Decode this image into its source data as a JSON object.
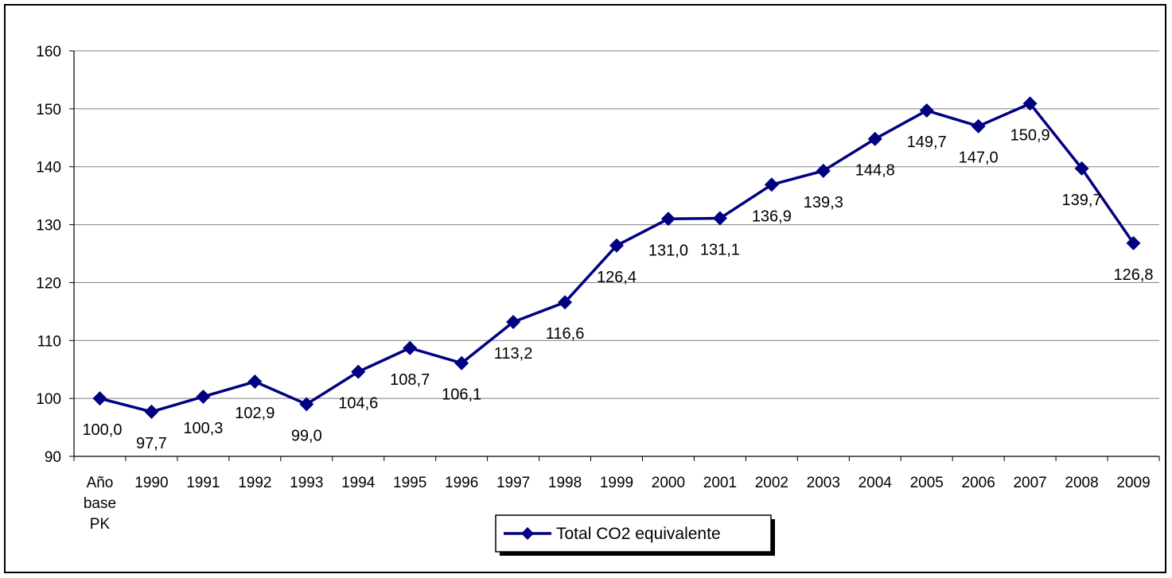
{
  "chart_data": {
    "type": "line",
    "title": "",
    "xlabel": "",
    "ylabel": "",
    "categories": [
      [
        "Año",
        "base",
        "PK"
      ],
      "1990",
      "1991",
      "1992",
      "1993",
      "1994",
      "1995",
      "1996",
      "1997",
      "1998",
      "1999",
      "2000",
      "2001",
      "2002",
      "2003",
      "2004",
      "2005",
      "2006",
      "2007",
      "2008",
      "2009"
    ],
    "series": [
      {
        "name": "Total CO2 equivalente",
        "values": [
          100.0,
          97.7,
          100.3,
          102.9,
          99.0,
          104.6,
          108.7,
          106.1,
          113.2,
          116.6,
          126.4,
          131.0,
          131.1,
          136.9,
          139.3,
          144.8,
          149.7,
          147.0,
          150.9,
          139.7,
          126.8
        ],
        "labels": [
          "100,0",
          "97,7",
          "100,3",
          "102,9",
          "99,0",
          "104,6",
          "108,7",
          "106,1",
          "113,2",
          "116,6",
          "126,4",
          "131,0",
          "131,1",
          "136,9",
          "139,3",
          "144,8",
          "149,7",
          "147,0",
          "150,9",
          "139,7",
          "126,8"
        ],
        "color": "#000080",
        "marker": "diamond"
      }
    ],
    "ylim": [
      90,
      160
    ],
    "yticks": [
      "90",
      "100",
      "110",
      "120",
      "130",
      "140",
      "150",
      "160"
    ],
    "grid": true,
    "legend": "bottom-center"
  }
}
